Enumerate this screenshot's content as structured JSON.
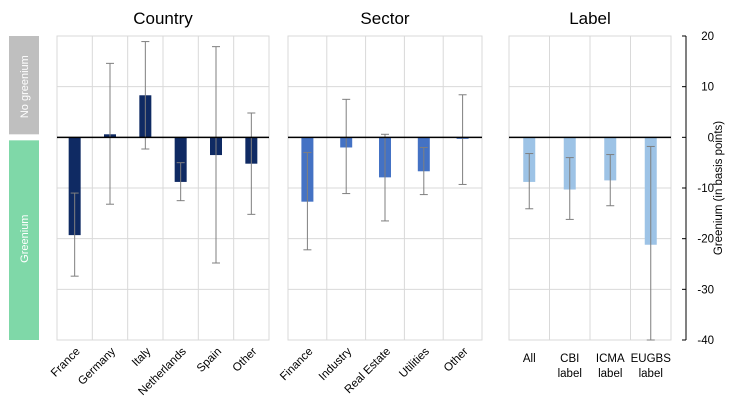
{
  "chart_data": {
    "type": "bar",
    "ylabel": "Greenium (in basis points)",
    "ylim": [
      -40,
      20
    ],
    "yticks": [
      20,
      10,
      0,
      -10,
      -20,
      -30,
      -40
    ],
    "grid": true,
    "bands": [
      {
        "label": "No greenium",
        "from": 0,
        "to": 20,
        "color": "#bfbfbf"
      },
      {
        "label": "Greenium",
        "from": -40,
        "to": 0,
        "color": "#7fd8a8"
      }
    ],
    "panels": [
      {
        "title": "Country",
        "color": "#0f2a63",
        "tick_rotation": -45,
        "categories": [
          "France",
          "Germany",
          "Italy",
          "Netherlands",
          "Spain",
          "Other"
        ],
        "values": [
          -19.3,
          0.6,
          8.3,
          -8.8,
          -3.5,
          -5.2
        ],
        "error_low": [
          -27.4,
          -13.2,
          -2.3,
          -12.5,
          -24.8,
          -15.2
        ],
        "error_high": [
          -11.0,
          14.6,
          18.9,
          -5.0,
          17.9,
          4.8
        ]
      },
      {
        "title": "Sector",
        "color": "#4472c4",
        "tick_rotation": -45,
        "categories": [
          "Finance",
          "Industry",
          "Real Estate",
          "Utilities",
          "Other"
        ],
        "values": [
          -12.7,
          -2.0,
          -7.9,
          -6.7,
          -0.3
        ],
        "error_low": [
          -22.2,
          -11.1,
          -16.5,
          -11.3,
          -9.3
        ],
        "error_high": [
          -3.0,
          7.5,
          0.6,
          -2.0,
          8.4
        ]
      },
      {
        "title": "Label",
        "color": "#9dc3e6",
        "tick_rotation": 0,
        "categories": [
          "All",
          "CBI\nlabel",
          "ICMA\nlabel",
          "EUGBS\nlabel"
        ],
        "values": [
          -8.8,
          -10.3,
          -8.5,
          -21.2
        ],
        "error_low": [
          -14.1,
          -16.2,
          -13.5,
          -40.0
        ],
        "error_high": [
          -3.2,
          -4.0,
          -3.4,
          -1.8
        ]
      }
    ]
  }
}
